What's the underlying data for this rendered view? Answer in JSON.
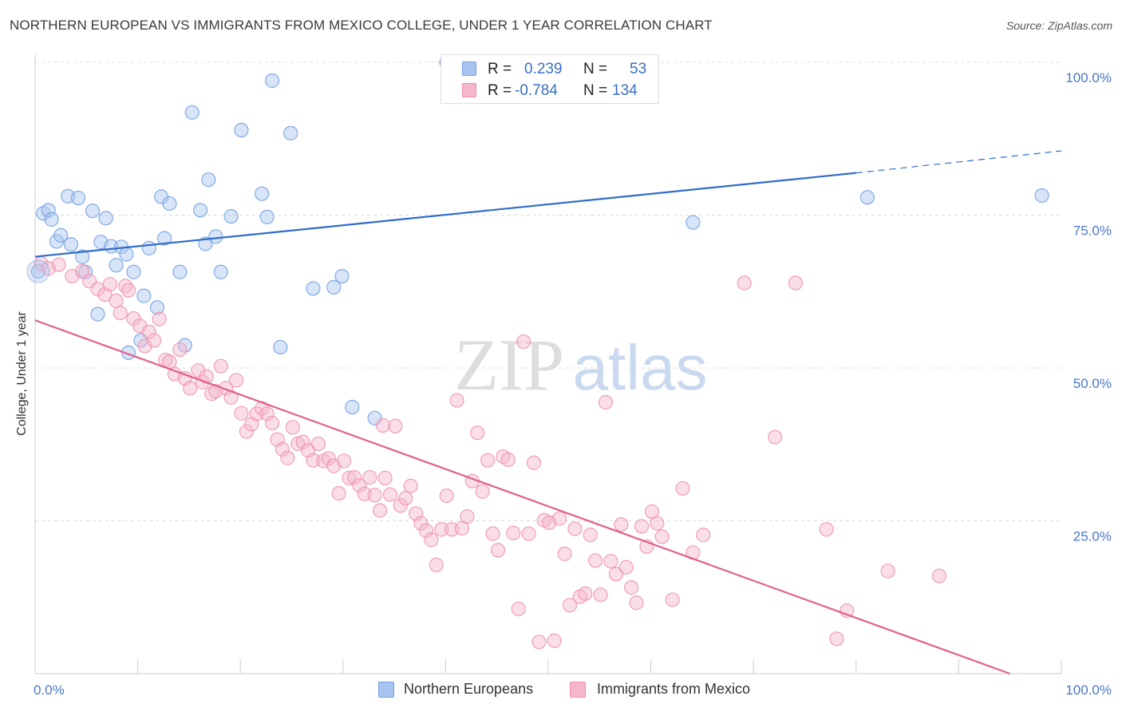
{
  "title": "NORTHERN EUROPEAN VS IMMIGRANTS FROM MEXICO COLLEGE, UNDER 1 YEAR CORRELATION CHART",
  "source": "Source: ZipAtlas.com",
  "watermark": {
    "zip": "ZIP",
    "atlas": "atlas"
  },
  "stats": {
    "r_label": "R =",
    "n_label": "N =",
    "rows": [
      {
        "r": "0.239",
        "n": "53",
        "color": "#a8c4ee"
      },
      {
        "r": "-0.784",
        "n": "134",
        "color": "#f4b6c9"
      }
    ]
  },
  "legend": [
    {
      "label": "Northern Europeans",
      "color": "#a8c4ee"
    },
    {
      "label": "Immigrants from Mexico",
      "color": "#f4b6c9"
    }
  ],
  "chart_data": {
    "type": "scatter",
    "title": "NORTHERN EUROPEAN VS IMMIGRANTS FROM MEXICO COLLEGE, UNDER 1 YEAR CORRELATION CHART",
    "xlabel": "",
    "ylabel": "College, Under 1 year",
    "xlim": [
      0,
      100
    ],
    "ylim": [
      0,
      100
    ],
    "x_tick_labels": [
      "0.0%",
      "100.0%"
    ],
    "y_tick_labels": [
      "25.0%",
      "50.0%",
      "75.0%",
      "100.0%"
    ],
    "y_ticks": [
      25,
      50,
      75,
      100
    ],
    "grid": true,
    "series": [
      {
        "name": "Northern Europeans",
        "color": "#6f9fe0",
        "fill": "#a8c4ee",
        "trend": {
          "x0": 0,
          "y0": 68.2,
          "x1": 80,
          "y1": 81.9,
          "dash_to_x": 100,
          "dash_to_y": 85.5,
          "color": "#2f6cc9"
        },
        "points": [
          [
            0.3,
            65.8
          ],
          [
            0.8,
            75.3
          ],
          [
            1.3,
            75.8
          ],
          [
            1.6,
            74.3
          ],
          [
            2.1,
            70.7
          ],
          [
            2.5,
            71.7
          ],
          [
            3.2,
            78.1
          ],
          [
            3.5,
            70.2
          ],
          [
            4.2,
            77.8
          ],
          [
            4.6,
            68.2
          ],
          [
            4.9,
            65.7
          ],
          [
            5.6,
            75.7
          ],
          [
            6.1,
            58.8
          ],
          [
            6.4,
            70.6
          ],
          [
            6.9,
            74.5
          ],
          [
            7.4,
            69.9
          ],
          [
            7.9,
            66.8
          ],
          [
            8.4,
            69.8
          ],
          [
            8.9,
            68.6
          ],
          [
            9.1,
            52.5
          ],
          [
            9.6,
            65.7
          ],
          [
            10.3,
            54.5
          ],
          [
            10.6,
            61.8
          ],
          [
            11.1,
            69.6
          ],
          [
            11.9,
            59.9
          ],
          [
            12.3,
            78.0
          ],
          [
            12.6,
            71.2
          ],
          [
            13.1,
            76.9
          ],
          [
            14.1,
            65.7
          ],
          [
            14.6,
            53.7
          ],
          [
            15.3,
            91.8
          ],
          [
            16.1,
            75.8
          ],
          [
            16.6,
            70.3
          ],
          [
            16.9,
            80.8
          ],
          [
            17.6,
            71.5
          ],
          [
            18.1,
            65.7
          ],
          [
            19.1,
            74.8
          ],
          [
            20.1,
            88.9
          ],
          [
            22.1,
            78.5
          ],
          [
            22.6,
            74.7
          ],
          [
            23.1,
            97.0
          ],
          [
            23.9,
            53.4
          ],
          [
            24.9,
            88.4
          ],
          [
            27.1,
            63.0
          ],
          [
            29.1,
            63.2
          ],
          [
            29.9,
            65.0
          ],
          [
            30.9,
            43.6
          ],
          [
            33.1,
            41.8
          ],
          [
            40.1,
            100.0
          ],
          [
            51.1,
            100.0
          ],
          [
            64.1,
            73.8
          ],
          [
            81.1,
            77.9
          ],
          [
            98.1,
            78.2
          ]
        ]
      },
      {
        "name": "Immigrants from Mexico",
        "color": "#ef8fae",
        "fill": "#f4b6c9",
        "trend": {
          "x0": 0,
          "y0": 57.8,
          "x1": 95,
          "y1": 0,
          "color": "#e0608e"
        },
        "points": [
          [
            0.6,
            67.1
          ],
          [
            1.3,
            66.3
          ],
          [
            2.3,
            66.9
          ],
          [
            3.6,
            65.0
          ],
          [
            4.6,
            65.8
          ],
          [
            5.3,
            64.2
          ],
          [
            6.1,
            62.9
          ],
          [
            6.8,
            62.0
          ],
          [
            7.3,
            63.7
          ],
          [
            7.9,
            61.0
          ],
          [
            8.3,
            59.0
          ],
          [
            8.8,
            63.4
          ],
          [
            9.1,
            62.7
          ],
          [
            9.6,
            58.1
          ],
          [
            10.2,
            56.9
          ],
          [
            10.7,
            53.6
          ],
          [
            11.1,
            55.9
          ],
          [
            11.6,
            54.5
          ],
          [
            12.1,
            58.0
          ],
          [
            12.7,
            51.3
          ],
          [
            13.1,
            51.0
          ],
          [
            13.6,
            49.0
          ],
          [
            14.1,
            53.0
          ],
          [
            14.6,
            48.3
          ],
          [
            15.1,
            46.7
          ],
          [
            15.9,
            49.6
          ],
          [
            16.3,
            47.7
          ],
          [
            16.7,
            48.6
          ],
          [
            17.2,
            45.8
          ],
          [
            17.6,
            46.2
          ],
          [
            18.1,
            50.3
          ],
          [
            18.6,
            46.7
          ],
          [
            19.1,
            45.2
          ],
          [
            19.6,
            48.0
          ],
          [
            20.1,
            42.6
          ],
          [
            20.6,
            39.6
          ],
          [
            21.1,
            40.8
          ],
          [
            21.6,
            42.5
          ],
          [
            22.1,
            43.4
          ],
          [
            22.6,
            42.5
          ],
          [
            23.1,
            41.0
          ],
          [
            23.6,
            38.3
          ],
          [
            24.1,
            36.7
          ],
          [
            24.6,
            35.3
          ],
          [
            25.1,
            40.3
          ],
          [
            25.6,
            37.6
          ],
          [
            26.1,
            37.9
          ],
          [
            26.6,
            36.5
          ],
          [
            27.1,
            34.9
          ],
          [
            27.6,
            37.6
          ],
          [
            28.1,
            34.8
          ],
          [
            28.6,
            35.2
          ],
          [
            29.1,
            34.0
          ],
          [
            29.6,
            29.5
          ],
          [
            30.1,
            34.8
          ],
          [
            30.6,
            32.0
          ],
          [
            31.1,
            32.1
          ],
          [
            31.6,
            30.8
          ],
          [
            32.1,
            29.4
          ],
          [
            32.6,
            32.1
          ],
          [
            33.1,
            29.2
          ],
          [
            33.6,
            26.7
          ],
          [
            34.1,
            32.0
          ],
          [
            34.6,
            29.3
          ],
          [
            35.1,
            40.5
          ],
          [
            35.6,
            27.5
          ],
          [
            36.1,
            28.7
          ],
          [
            36.6,
            30.7
          ],
          [
            37.1,
            26.2
          ],
          [
            37.6,
            24.6
          ],
          [
            38.1,
            23.4
          ],
          [
            38.6,
            21.9
          ],
          [
            39.1,
            17.8
          ],
          [
            39.6,
            23.6
          ],
          [
            40.1,
            29.1
          ],
          [
            40.6,
            23.6
          ],
          [
            41.1,
            44.7
          ],
          [
            41.6,
            23.8
          ],
          [
            42.1,
            25.7
          ],
          [
            42.6,
            31.5
          ],
          [
            43.1,
            39.4
          ],
          [
            43.6,
            29.8
          ],
          [
            44.1,
            34.9
          ],
          [
            44.6,
            22.9
          ],
          [
            45.1,
            20.2
          ],
          [
            45.6,
            35.5
          ],
          [
            46.1,
            35.0
          ],
          [
            46.6,
            23.0
          ],
          [
            47.1,
            10.6
          ],
          [
            47.6,
            54.3
          ],
          [
            48.1,
            22.9
          ],
          [
            48.6,
            34.5
          ],
          [
            49.1,
            5.2
          ],
          [
            49.6,
            25.1
          ],
          [
            50.1,
            24.7
          ],
          [
            50.6,
            5.4
          ],
          [
            51.1,
            25.4
          ],
          [
            51.6,
            19.6
          ],
          [
            52.1,
            11.2
          ],
          [
            52.6,
            23.7
          ],
          [
            53.1,
            12.6
          ],
          [
            53.6,
            13.1
          ],
          [
            54.1,
            22.7
          ],
          [
            54.6,
            18.5
          ],
          [
            55.1,
            12.9
          ],
          [
            55.6,
            44.4
          ],
          [
            56.1,
            18.4
          ],
          [
            56.6,
            16.3
          ],
          [
            57.1,
            24.4
          ],
          [
            57.6,
            17.4
          ],
          [
            58.1,
            14.1
          ],
          [
            58.6,
            11.6
          ],
          [
            59.1,
            24.1
          ],
          [
            59.6,
            20.8
          ],
          [
            60.1,
            26.5
          ],
          [
            60.6,
            24.6
          ],
          [
            61.1,
            22.4
          ],
          [
            62.1,
            12.1
          ],
          [
            63.1,
            30.3
          ],
          [
            64.1,
            19.8
          ],
          [
            65.1,
            22.7
          ],
          [
            69.1,
            63.9
          ],
          [
            72.1,
            38.7
          ],
          [
            74.1,
            63.9
          ],
          [
            77.1,
            23.6
          ],
          [
            78.1,
            5.7
          ],
          [
            79.1,
            10.3
          ],
          [
            83.1,
            16.8
          ],
          [
            88.1,
            16.0
          ],
          [
            33.9,
            40.6
          ]
        ]
      }
    ]
  }
}
